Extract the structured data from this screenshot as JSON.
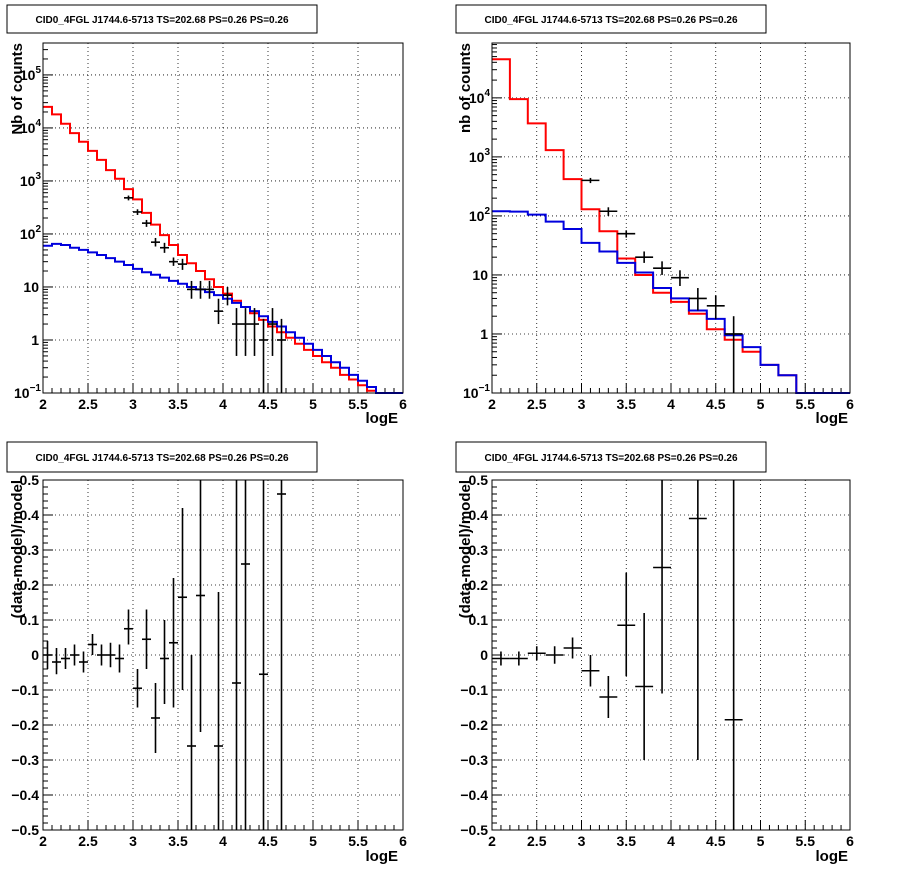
{
  "chart_data": [
    {
      "type": "line",
      "title": "CID0_4FGL J1744.6-5713 TS=202.68 PS=0.26 PS=0.26",
      "xlabel": "logE",
      "ylabel": "Nb of counts",
      "xlim": [
        2,
        6
      ],
      "ylim": [
        0.1,
        400000
      ],
      "yscale": "log",
      "grid": true,
      "x_ticks": [
        "2",
        "2.5",
        "3",
        "3.5",
        "4",
        "4.5",
        "5",
        "5.5",
        "6"
      ],
      "y_ticks": [
        {
          "v": 0.1,
          "main": "10",
          "exp": "−1"
        },
        {
          "v": 1,
          "main": "1",
          "exp": ""
        },
        {
          "v": 10,
          "main": "10",
          "exp": ""
        },
        {
          "v": 100,
          "main": "10",
          "exp": "2"
        },
        {
          "v": 1000,
          "main": "10",
          "exp": "3"
        },
        {
          "v": 10000,
          "main": "10",
          "exp": "4"
        },
        {
          "v": 100000,
          "main": "10",
          "exp": "5"
        }
      ],
      "bin_width": 0.1,
      "series": [
        {
          "color": "#ff0000",
          "bin_start": 2.0,
          "values": [
            25000,
            18000,
            12000,
            8000,
            5500,
            3700,
            2500,
            1600,
            1100,
            700,
            450,
            250,
            150,
            95,
            62,
            40,
            28,
            20,
            14,
            10,
            7.5,
            5.5,
            4.2,
            3.2,
            2.4,
            1.8,
            1.4,
            1.1,
            0.85,
            0.65,
            0.5,
            0.38,
            0.3,
            0.22,
            0.18,
            0.14,
            0.11,
            0.1,
            0.1,
            0.1
          ]
        },
        {
          "color": "#0000dd",
          "bin_start": 2.0,
          "values": [
            60,
            65,
            62,
            55,
            50,
            45,
            40,
            35,
            30,
            26,
            22,
            19,
            17,
            15,
            13,
            11.5,
            10,
            9,
            8,
            7,
            6,
            5,
            4.2,
            3.5,
            2.8,
            2.2,
            1.8,
            1.4,
            1.1,
            0.85,
            0.65,
            0.5,
            0.38,
            0.3,
            0.22,
            0.17,
            0.13,
            0.1,
            0.1,
            0.1
          ]
        }
      ],
      "data_points": [
        {
          "x": 2.95,
          "y": 480,
          "lo": 430,
          "hi": 530
        },
        {
          "x": 3.05,
          "y": 260,
          "lo": 228,
          "hi": 292
        },
        {
          "x": 3.15,
          "y": 160,
          "lo": 136,
          "hi": 184
        },
        {
          "x": 3.25,
          "y": 70,
          "lo": 58,
          "hi": 84
        },
        {
          "x": 3.35,
          "y": 55,
          "lo": 44,
          "hi": 68
        },
        {
          "x": 3.45,
          "y": 30,
          "lo": 25,
          "hi": 36
        },
        {
          "x": 3.55,
          "y": 27,
          "lo": 21,
          "hi": 34
        },
        {
          "x": 3.65,
          "y": 9,
          "lo": 6,
          "hi": 13
        },
        {
          "x": 3.75,
          "y": 9,
          "lo": 6,
          "hi": 13
        },
        {
          "x": 3.85,
          "y": 9,
          "lo": 6,
          "hi": 13
        },
        {
          "x": 3.95,
          "y": 3.5,
          "lo": 2,
          "hi": 6
        },
        {
          "x": 4.05,
          "y": 7,
          "lo": 4.5,
          "hi": 10
        },
        {
          "x": 4.15,
          "y": 2,
          "lo": 0.5,
          "hi": 4
        },
        {
          "x": 4.25,
          "y": 2,
          "lo": 0.5,
          "hi": 4
        },
        {
          "x": 4.35,
          "y": 2,
          "lo": 0.5,
          "hi": 4
        },
        {
          "x": 4.45,
          "y": 1,
          "lo": 0.1,
          "hi": 2.5
        },
        {
          "x": 4.55,
          "y": 2,
          "lo": 0.5,
          "hi": 4
        },
        {
          "x": 4.65,
          "y": 1,
          "lo": 0.1,
          "hi": 2.5
        }
      ],
      "data_half_width": 0.05
    },
    {
      "type": "line",
      "title": "CID0_4FGL J1744.6-5713 TS=202.68 PS=0.26 PS=0.26",
      "xlabel": "logE",
      "ylabel": "nb of counts",
      "xlim": [
        2,
        6
      ],
      "ylim": [
        0.1,
        85000
      ],
      "yscale": "log",
      "grid": true,
      "x_ticks": [
        "2",
        "2.5",
        "3",
        "3.5",
        "4",
        "4.5",
        "5",
        "5.5",
        "6"
      ],
      "y_ticks": [
        {
          "v": 0.1,
          "main": "10",
          "exp": "−1"
        },
        {
          "v": 1,
          "main": "1",
          "exp": ""
        },
        {
          "v": 10,
          "main": "10",
          "exp": ""
        },
        {
          "v": 100,
          "main": "10",
          "exp": "2"
        },
        {
          "v": 1000,
          "main": "10",
          "exp": "3"
        },
        {
          "v": 10000,
          "main": "10",
          "exp": "4"
        }
      ],
      "bin_width": 0.2,
      "series": [
        {
          "color": "#ff0000",
          "bin_start": 2.0,
          "values": [
            45000,
            9500,
            3700,
            1300,
            420,
            130,
            55,
            19,
            10,
            5,
            3.5,
            2.2,
            1.2,
            0.8,
            0.5,
            0.3,
            0.2,
            0.1,
            0.1,
            0.1
          ]
        },
        {
          "color": "#0000dd",
          "bin_start": 2.0,
          "values": [
            120,
            118,
            105,
            80,
            60,
            35,
            25,
            16,
            11,
            6,
            4,
            2.5,
            1.8,
            0.95,
            0.6,
            0.3,
            0.2,
            0.1,
            0.1,
            0.1
          ]
        }
      ],
      "data_points": [
        {
          "x": 3.1,
          "y": 400,
          "lo": 360,
          "hi": 440
        },
        {
          "x": 3.3,
          "y": 120,
          "lo": 100,
          "hi": 140
        },
        {
          "x": 3.5,
          "y": 50,
          "lo": 43,
          "hi": 57
        },
        {
          "x": 3.7,
          "y": 20,
          "lo": 16,
          "hi": 25
        },
        {
          "x": 3.9,
          "y": 13,
          "lo": 10,
          "hi": 17
        },
        {
          "x": 4.1,
          "y": 9,
          "lo": 6.5,
          "hi": 12
        },
        {
          "x": 4.3,
          "y": 4,
          "lo": 2.5,
          "hi": 6
        },
        {
          "x": 4.5,
          "y": 3,
          "lo": 1.8,
          "hi": 4.5
        },
        {
          "x": 4.7,
          "y": 1,
          "lo": 0.1,
          "hi": 2
        }
      ],
      "data_half_width": 0.1
    },
    {
      "type": "scatter",
      "title": "CID0_4FGL J1744.6-5713 TS=202.68 PS=0.26 PS=0.26",
      "xlabel": "logE",
      "ylabel": "(data-model)/model",
      "xlim": [
        2,
        6
      ],
      "ylim": [
        -0.5,
        0.5
      ],
      "yscale": "linear",
      "grid": true,
      "x_ticks": [
        "2",
        "2.5",
        "3",
        "3.5",
        "4",
        "4.5",
        "5",
        "5.5",
        "6"
      ],
      "y_ticks": [
        {
          "v": -0.5,
          "main": "−0.5",
          "exp": ""
        },
        {
          "v": -0.4,
          "main": "−0.4",
          "exp": ""
        },
        {
          "v": -0.3,
          "main": "−0.3",
          "exp": ""
        },
        {
          "v": -0.2,
          "main": "−0.2",
          "exp": ""
        },
        {
          "v": -0.1,
          "main": "−0.1",
          "exp": ""
        },
        {
          "v": 0,
          "main": "0",
          "exp": ""
        },
        {
          "v": 0.1,
          "main": "0.1",
          "exp": ""
        },
        {
          "v": 0.2,
          "main": "0.2",
          "exp": ""
        },
        {
          "v": 0.3,
          "main": "0.3",
          "exp": ""
        },
        {
          "v": 0.4,
          "main": "0.4",
          "exp": ""
        },
        {
          "v": 0.5,
          "main": "0.5",
          "exp": ""
        }
      ],
      "data_points": [
        {
          "x": 2.05,
          "y": 0.0,
          "lo": -0.04,
          "hi": 0.04
        },
        {
          "x": 2.15,
          "y": -0.02,
          "lo": -0.055,
          "hi": 0.02
        },
        {
          "x": 2.25,
          "y": -0.01,
          "lo": -0.04,
          "hi": 0.02
        },
        {
          "x": 2.35,
          "y": 0.0,
          "lo": -0.03,
          "hi": 0.03
        },
        {
          "x": 2.45,
          "y": -0.02,
          "lo": -0.05,
          "hi": 0.01
        },
        {
          "x": 2.55,
          "y": 0.03,
          "lo": 0.0,
          "hi": 0.06
        },
        {
          "x": 2.65,
          "y": 0.0,
          "lo": -0.03,
          "hi": 0.03
        },
        {
          "x": 2.75,
          "y": 0.0,
          "lo": -0.035,
          "hi": 0.035
        },
        {
          "x": 2.85,
          "y": -0.01,
          "lo": -0.05,
          "hi": 0.03
        },
        {
          "x": 2.95,
          "y": 0.075,
          "lo": 0.03,
          "hi": 0.13
        },
        {
          "x": 3.05,
          "y": -0.095,
          "lo": -0.15,
          "hi": -0.04
        },
        {
          "x": 3.15,
          "y": 0.045,
          "lo": -0.04,
          "hi": 0.13
        },
        {
          "x": 3.25,
          "y": -0.18,
          "lo": -0.28,
          "hi": -0.08
        },
        {
          "x": 3.35,
          "y": -0.01,
          "lo": -0.14,
          "hi": 0.1
        },
        {
          "x": 3.45,
          "y": 0.035,
          "lo": -0.15,
          "hi": 0.22
        },
        {
          "x": 3.55,
          "y": 0.165,
          "lo": -0.1,
          "hi": 0.42
        },
        {
          "x": 3.65,
          "y": -0.26,
          "lo": -0.5,
          "hi": 0.0
        },
        {
          "x": 3.75,
          "y": 0.17,
          "lo": -0.22,
          "hi": 0.5
        },
        {
          "x": 3.95,
          "y": -0.26,
          "lo": -0.5,
          "hi": 0.18
        },
        {
          "x": 4.15,
          "y": -0.08,
          "lo": -0.5,
          "hi": 0.5
        },
        {
          "x": 4.25,
          "y": 0.26,
          "lo": -0.5,
          "hi": 0.5
        },
        {
          "x": 4.45,
          "y": -0.055,
          "lo": -0.5,
          "hi": 0.5
        },
        {
          "x": 4.65,
          "y": 0.46,
          "lo": -0.5,
          "hi": 0.5
        }
      ],
      "data_half_width": 0.05
    },
    {
      "type": "scatter",
      "title": "CID0_4FGL J1744.6-5713 TS=202.68 PS=0.26 PS=0.26",
      "xlabel": "logE",
      "ylabel": "(data-model)/model",
      "xlim": [
        2,
        6
      ],
      "ylim": [
        -0.5,
        0.5
      ],
      "yscale": "linear",
      "grid": true,
      "x_ticks": [
        "2",
        "2.5",
        "3",
        "3.5",
        "4",
        "4.5",
        "5",
        "5.5",
        "6"
      ],
      "y_ticks": [
        {
          "v": -0.5,
          "main": "−0.5",
          "exp": ""
        },
        {
          "v": -0.4,
          "main": "−0.4",
          "exp": ""
        },
        {
          "v": -0.3,
          "main": "−0.3",
          "exp": ""
        },
        {
          "v": -0.2,
          "main": "−0.2",
          "exp": ""
        },
        {
          "v": -0.1,
          "main": "−0.1",
          "exp": ""
        },
        {
          "v": 0,
          "main": "0",
          "exp": ""
        },
        {
          "v": 0.1,
          "main": "0.1",
          "exp": ""
        },
        {
          "v": 0.2,
          "main": "0.2",
          "exp": ""
        },
        {
          "v": 0.3,
          "main": "0.3",
          "exp": ""
        },
        {
          "v": 0.4,
          "main": "0.4",
          "exp": ""
        },
        {
          "v": 0.5,
          "main": "0.5",
          "exp": ""
        }
      ],
      "data_points": [
        {
          "x": 2.1,
          "y": -0.01,
          "lo": -0.03,
          "hi": 0.01
        },
        {
          "x": 2.3,
          "y": -0.01,
          "lo": -0.03,
          "hi": 0.01
        },
        {
          "x": 2.5,
          "y": 0.005,
          "lo": -0.015,
          "hi": 0.025
        },
        {
          "x": 2.7,
          "y": 0.0,
          "lo": -0.025,
          "hi": 0.025
        },
        {
          "x": 2.9,
          "y": 0.02,
          "lo": -0.01,
          "hi": 0.05
        },
        {
          "x": 3.1,
          "y": -0.045,
          "lo": -0.09,
          "hi": 0.0
        },
        {
          "x": 3.3,
          "y": -0.12,
          "lo": -0.18,
          "hi": -0.06
        },
        {
          "x": 3.5,
          "y": 0.085,
          "lo": -0.06,
          "hi": 0.235
        },
        {
          "x": 3.7,
          "y": -0.09,
          "lo": -0.3,
          "hi": 0.12
        },
        {
          "x": 3.9,
          "y": 0.25,
          "lo": -0.11,
          "hi": 0.5
        },
        {
          "x": 4.3,
          "y": 0.39,
          "lo": -0.3,
          "hi": 0.5
        },
        {
          "x": 4.7,
          "y": -0.185,
          "lo": -0.5,
          "hi": 0.5
        }
      ],
      "data_half_width": 0.1
    }
  ]
}
